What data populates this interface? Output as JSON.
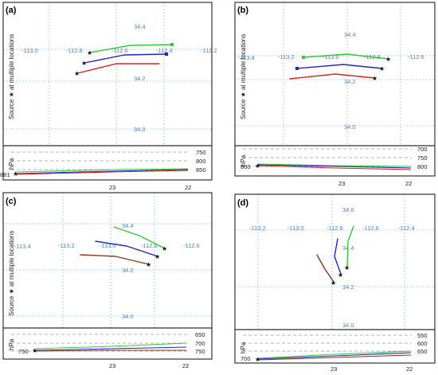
{
  "panels": [
    {
      "id": "a",
      "label": "(a)",
      "ylabel": "Source ★ at multiple locations",
      "hpa_label": "hPa",
      "lon_labels": [
        "-113.0",
        "-112.8",
        "-112.6",
        "-112.4",
        "-112.2"
      ],
      "lat_labels": [
        "34.4",
        "34.2",
        "34.0"
      ],
      "pressure_labels": [
        "750",
        "800",
        "850"
      ],
      "source_pressure": "881",
      "x_ticks": [
        "23",
        "22"
      ]
    },
    {
      "id": "b",
      "label": "(b)",
      "ylabel": "Source ★ at multiple locations",
      "hpa_label": "hPa",
      "lon_labels": [
        "-113.4",
        "-113.2",
        "-113.0",
        "-112.8",
        "-112.6"
      ],
      "lat_labels": [
        "34.4",
        "34.2",
        "34.0"
      ],
      "pressure_labels": [
        "700",
        "750",
        "800"
      ],
      "source_pressure": "800",
      "x_ticks": [
        "23",
        "22"
      ]
    },
    {
      "id": "c",
      "label": "(c)",
      "ylabel": "Source ★ at multiple locations",
      "hpa_label": "hPa",
      "lon_labels": [
        "-113.4",
        "-113.2",
        "-113.0",
        "-112.8",
        "-112.6"
      ],
      "lat_labels": [
        "34.4",
        "34.2",
        "34.0"
      ],
      "pressure_labels": [
        "650",
        "700",
        "750"
      ],
      "source_pressure": "750",
      "x_ticks": [
        "23",
        "22"
      ]
    },
    {
      "id": "d",
      "label": "(d)",
      "ylabel": "",
      "hpa_label": "hPa",
      "lon_labels": [
        "-113.2",
        "-113.0",
        "-112.8",
        "-112.6",
        "-112.4"
      ],
      "lat_labels": [
        "34.6",
        "34.4",
        "34.2",
        "34.0"
      ],
      "pressure_labels": [
        "550",
        "600",
        "650"
      ],
      "source_pressure": "700",
      "x_ticks": [
        "23",
        "22"
      ]
    }
  ],
  "colors": {
    "green": "#33cc33",
    "blue": "#2222cc",
    "red": "#dd2222",
    "brown": "#8b3a1a",
    "grid": "#7fb2d8",
    "coord_text": "#4d86c6"
  }
}
